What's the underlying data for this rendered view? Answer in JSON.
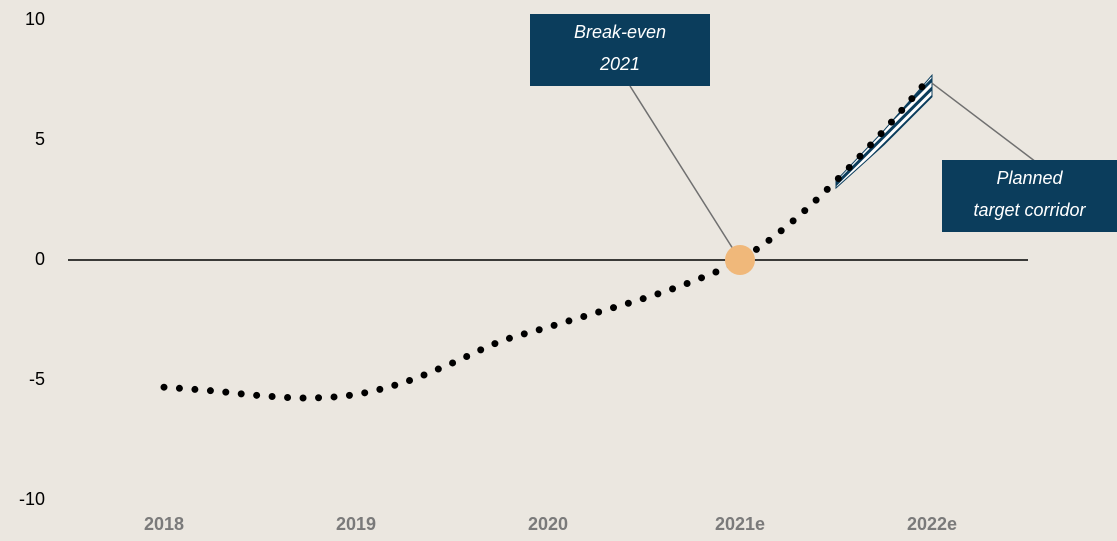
{
  "chart_data": {
    "type": "line",
    "xlim": [
      2017.5,
      2022.5
    ],
    "xticks": [
      {
        "value": 2018,
        "label": "2018"
      },
      {
        "value": 2019,
        "label": "2019"
      },
      {
        "value": 2020,
        "label": "2020"
      },
      {
        "value": 2021,
        "label": "2021e"
      },
      {
        "value": 2022,
        "label": "2022e"
      }
    ],
    "ylim": [
      -10,
      10
    ],
    "yticks": [
      -10,
      -5,
      0,
      5,
      10
    ],
    "grid": false,
    "series": [
      {
        "color": "#000000",
        "x": [
          2018,
          2018.25,
          2018.5,
          2018.75,
          2019,
          2019.25,
          2019.5,
          2019.75,
          2020,
          2020.25,
          2020.5,
          2020.75,
          2021,
          2021.25,
          2021.5,
          2021.75,
          2022
        ],
        "values": [
          -5.3,
          -5.45,
          -5.65,
          -5.75,
          -5.6,
          -5.1,
          -4.3,
          -3.4,
          -2.8,
          -2.2,
          -1.6,
          -0.9,
          0,
          1.45,
          3.3,
          5.4,
          7.7
        ]
      }
    ],
    "corridor": {
      "color": "#0b3d5c",
      "x": [
        2021.5,
        2021.75,
        2022
      ],
      "upper": [
        3.3,
        5.4,
        7.7
      ],
      "lower": [
        3.0,
        4.8,
        6.8
      ]
    },
    "breakeven": {
      "x": 2021,
      "y": 0,
      "color": "#f0b87a"
    },
    "annotations": [
      {
        "lines": [
          "Break-even",
          "2021"
        ]
      },
      {
        "lines": [
          "Planned",
          "target corridor"
        ]
      }
    ]
  }
}
